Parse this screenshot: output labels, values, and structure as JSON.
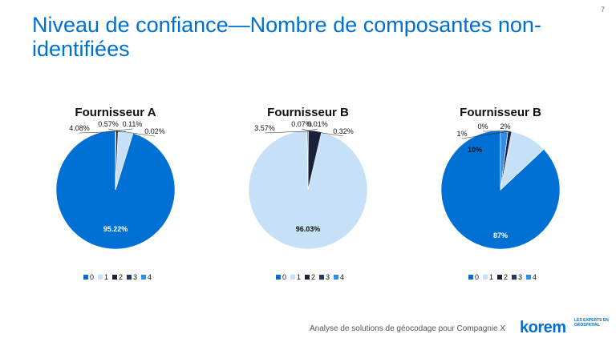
{
  "page_number": "7",
  "title": "Niveau de confiance—Nombre de composantes non-identifiées",
  "footer": {
    "text": "Analyse de solutions de géocodage pour Compagnie X",
    "logo": "korem",
    "logo_tagline": "LES EXPERTS EN GÉOSPATIAL"
  },
  "colors": {
    "0": "#0070d4",
    "1": "#c5e0f7",
    "2": "#1a1f3a",
    "3": "#1e3a66",
    "4": "#2f8fe8"
  },
  "chart_data": [
    {
      "type": "pie",
      "title": "Fournisseur A",
      "categories": [
        "0",
        "1",
        "2",
        "3",
        "4"
      ],
      "values": [
        95.22,
        4.08,
        0.57,
        0.11,
        0.02
      ],
      "labels": [
        "95.22%",
        "4.08%",
        "0.57%",
        "0.11%",
        "0.02%"
      ],
      "legend": "bottom"
    },
    {
      "type": "pie",
      "title": "Fournisseur B",
      "categories": [
        "0",
        "1",
        "2",
        "3",
        "4"
      ],
      "values": [
        0.32,
        96.03,
        3.57,
        0.07,
        0.01
      ],
      "labels": [
        "0.32%",
        "96.03%",
        "3.57%",
        "0.07%",
        "0.01%"
      ],
      "legend": "bottom"
    },
    {
      "type": "pie",
      "title": "Fournisseur B",
      "categories": [
        "0",
        "1",
        "2",
        "3",
        "4"
      ],
      "values": [
        87,
        10,
        1,
        0,
        2
      ],
      "labels": [
        "87%",
        "10%",
        "1%",
        "0%",
        "2%"
      ],
      "legend": "bottom"
    }
  ]
}
